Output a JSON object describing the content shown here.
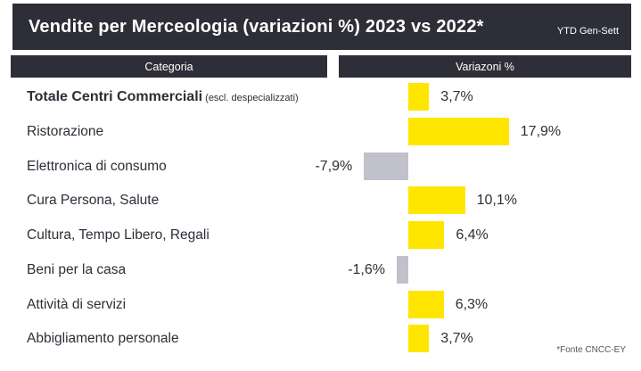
{
  "header": {
    "title": "Vendite per Merceologia (variazioni %) 2023 vs 2022*",
    "period": "YTD Gen-Sett"
  },
  "columns": {
    "category": "Categoria",
    "variation": "Variazoni %"
  },
  "footnote": "*Fonte CNCC-EY",
  "colors": {
    "dark": "#2e2e38",
    "positive_bar": "#ffe600",
    "negative_bar": "#c1c1cc",
    "background": "#ffffff"
  },
  "chart_data": {
    "type": "bar",
    "orientation": "horizontal",
    "title": "Vendite per Merceologia (variazioni %) 2023 vs 2022*",
    "subtitle": "YTD Gen-Sett",
    "xlabel": "Variazoni %",
    "ylabel": "Categoria",
    "unit": "%",
    "xlim": [
      -13,
      25
    ],
    "grid": false,
    "categories": [
      "Totale Centri Commerciali",
      "Ristorazione",
      "Elettronica di consumo",
      "Cura Persona, Salute",
      "Cultura, Tempo Libero, Regali",
      "Beni per la casa",
      "Attività di servizi",
      "Abbigliamento personale"
    ],
    "category_notes": [
      "(escl. despecializzati)",
      "",
      "",
      "",
      "",
      "",
      "",
      ""
    ],
    "values": [
      3.7,
      17.9,
      -7.9,
      10.1,
      6.4,
      -1.6,
      6.3,
      3.7
    ],
    "value_labels": [
      "3,7%",
      "17,9%",
      "-7,9%",
      "10,1%",
      "6,4%",
      "-1,6%",
      "6,3%",
      "3,7%"
    ],
    "positive_color": "#ffe600",
    "negative_color": "#c1c1cc",
    "source": "*Fonte CNCC-EY"
  }
}
